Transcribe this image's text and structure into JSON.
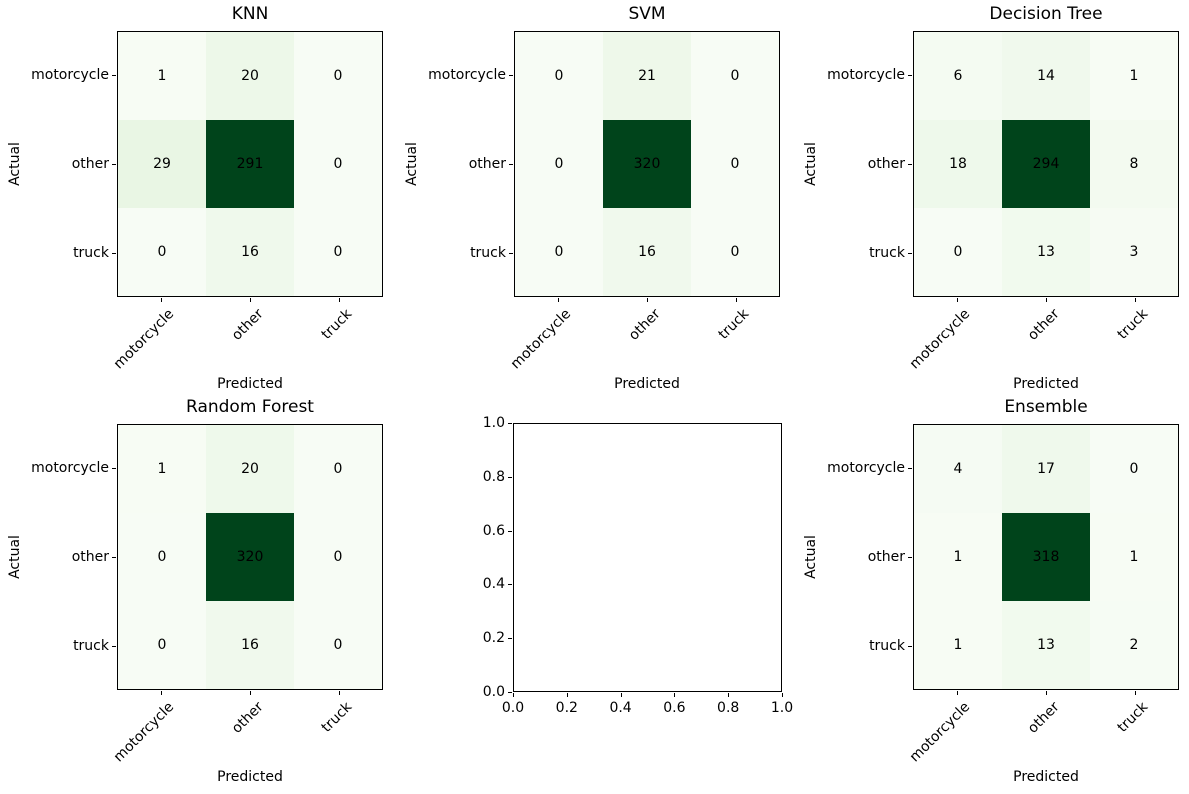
{
  "figure": {
    "background": "#ffffff",
    "spine_color": "#000000",
    "text_color": "#000000"
  },
  "colors": {
    "cmap_name": "Greens",
    "cmap_stops": [
      "#f7fcf5",
      "#e5f5e0",
      "#c7e9c0",
      "#a1d99b",
      "#74c476",
      "#41ab5d",
      "#238b45",
      "#006d2c",
      "#00441b"
    ]
  },
  "chart_data": [
    {
      "type": "heatmap",
      "title": "KNN",
      "xlabel": "Predicted",
      "ylabel": "Actual",
      "x_categories": [
        "motorcycle",
        "other",
        "truck"
      ],
      "y_categories": [
        "motorcycle",
        "other",
        "truck"
      ],
      "values": [
        [
          1,
          20,
          0
        ],
        [
          29,
          291,
          0
        ],
        [
          0,
          16,
          0
        ]
      ],
      "vmin": 0,
      "vmax": 291
    },
    {
      "type": "heatmap",
      "title": "SVM",
      "xlabel": "Predicted",
      "ylabel": "Actual",
      "x_categories": [
        "motorcycle",
        "other",
        "truck"
      ],
      "y_categories": [
        "motorcycle",
        "other",
        "truck"
      ],
      "values": [
        [
          0,
          21,
          0
        ],
        [
          0,
          320,
          0
        ],
        [
          0,
          16,
          0
        ]
      ],
      "vmin": 0,
      "vmax": 320
    },
    {
      "type": "heatmap",
      "title": "Decision Tree",
      "xlabel": "Predicted",
      "ylabel": "Actual",
      "x_categories": [
        "motorcycle",
        "other",
        "truck"
      ],
      "y_categories": [
        "motorcycle",
        "other",
        "truck"
      ],
      "values": [
        [
          6,
          14,
          1
        ],
        [
          18,
          294,
          8
        ],
        [
          0,
          13,
          3
        ]
      ],
      "vmin": 0,
      "vmax": 294
    },
    {
      "type": "heatmap",
      "title": "Random Forest",
      "xlabel": "Predicted",
      "ylabel": "Actual",
      "x_categories": [
        "motorcycle",
        "other",
        "truck"
      ],
      "y_categories": [
        "motorcycle",
        "other",
        "truck"
      ],
      "values": [
        [
          1,
          20,
          0
        ],
        [
          0,
          320,
          0
        ],
        [
          0,
          16,
          0
        ]
      ],
      "vmin": 0,
      "vmax": 320
    },
    {
      "type": "empty",
      "title": "",
      "x_ticks": [
        "0.0",
        "0.2",
        "0.4",
        "0.6",
        "0.8",
        "1.0"
      ],
      "y_ticks": [
        "0.0",
        "0.2",
        "0.4",
        "0.6",
        "0.8",
        "1.0"
      ],
      "xlim": [
        0.0,
        1.0
      ],
      "ylim": [
        0.0,
        1.0
      ]
    },
    {
      "type": "heatmap",
      "title": "Ensemble",
      "xlabel": "Predicted",
      "ylabel": "Actual",
      "x_categories": [
        "motorcycle",
        "other",
        "truck"
      ],
      "y_categories": [
        "motorcycle",
        "other",
        "truck"
      ],
      "values": [
        [
          4,
          17,
          0
        ],
        [
          1,
          318,
          1
        ],
        [
          1,
          13,
          2
        ]
      ],
      "vmin": 0,
      "vmax": 318
    }
  ]
}
